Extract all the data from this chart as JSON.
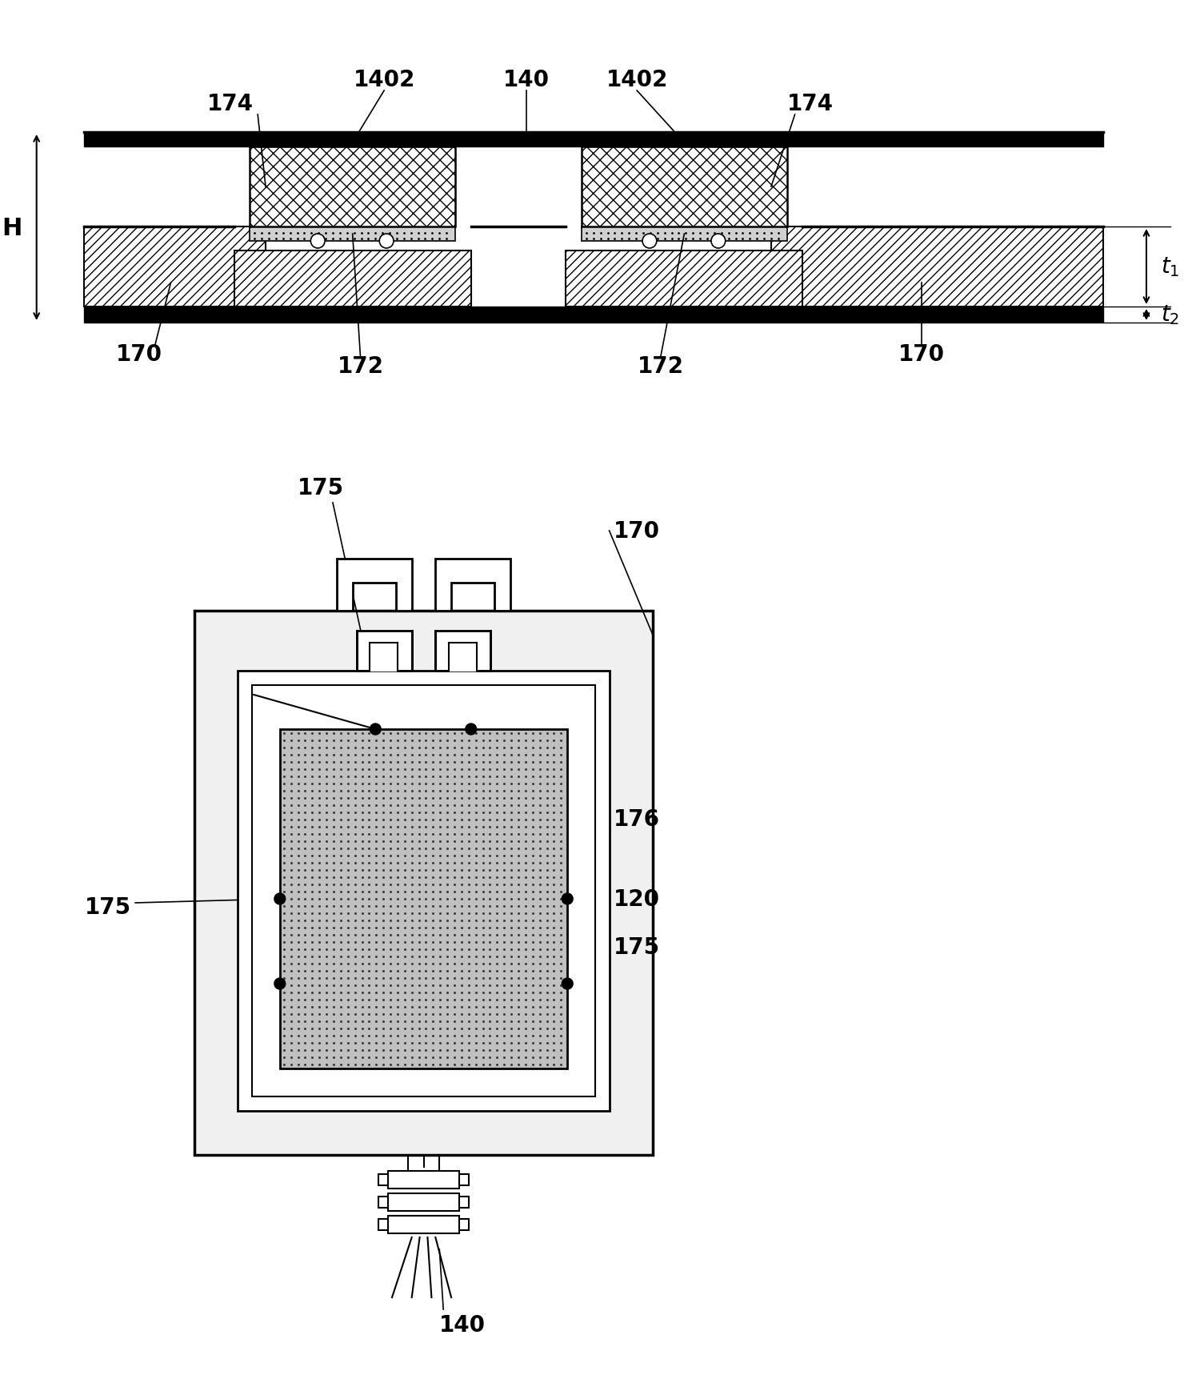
{
  "bg_color": "#ffffff",
  "fig_width": 14.8,
  "fig_height": 17.24,
  "fs_label": 20,
  "fs_small": 16
}
